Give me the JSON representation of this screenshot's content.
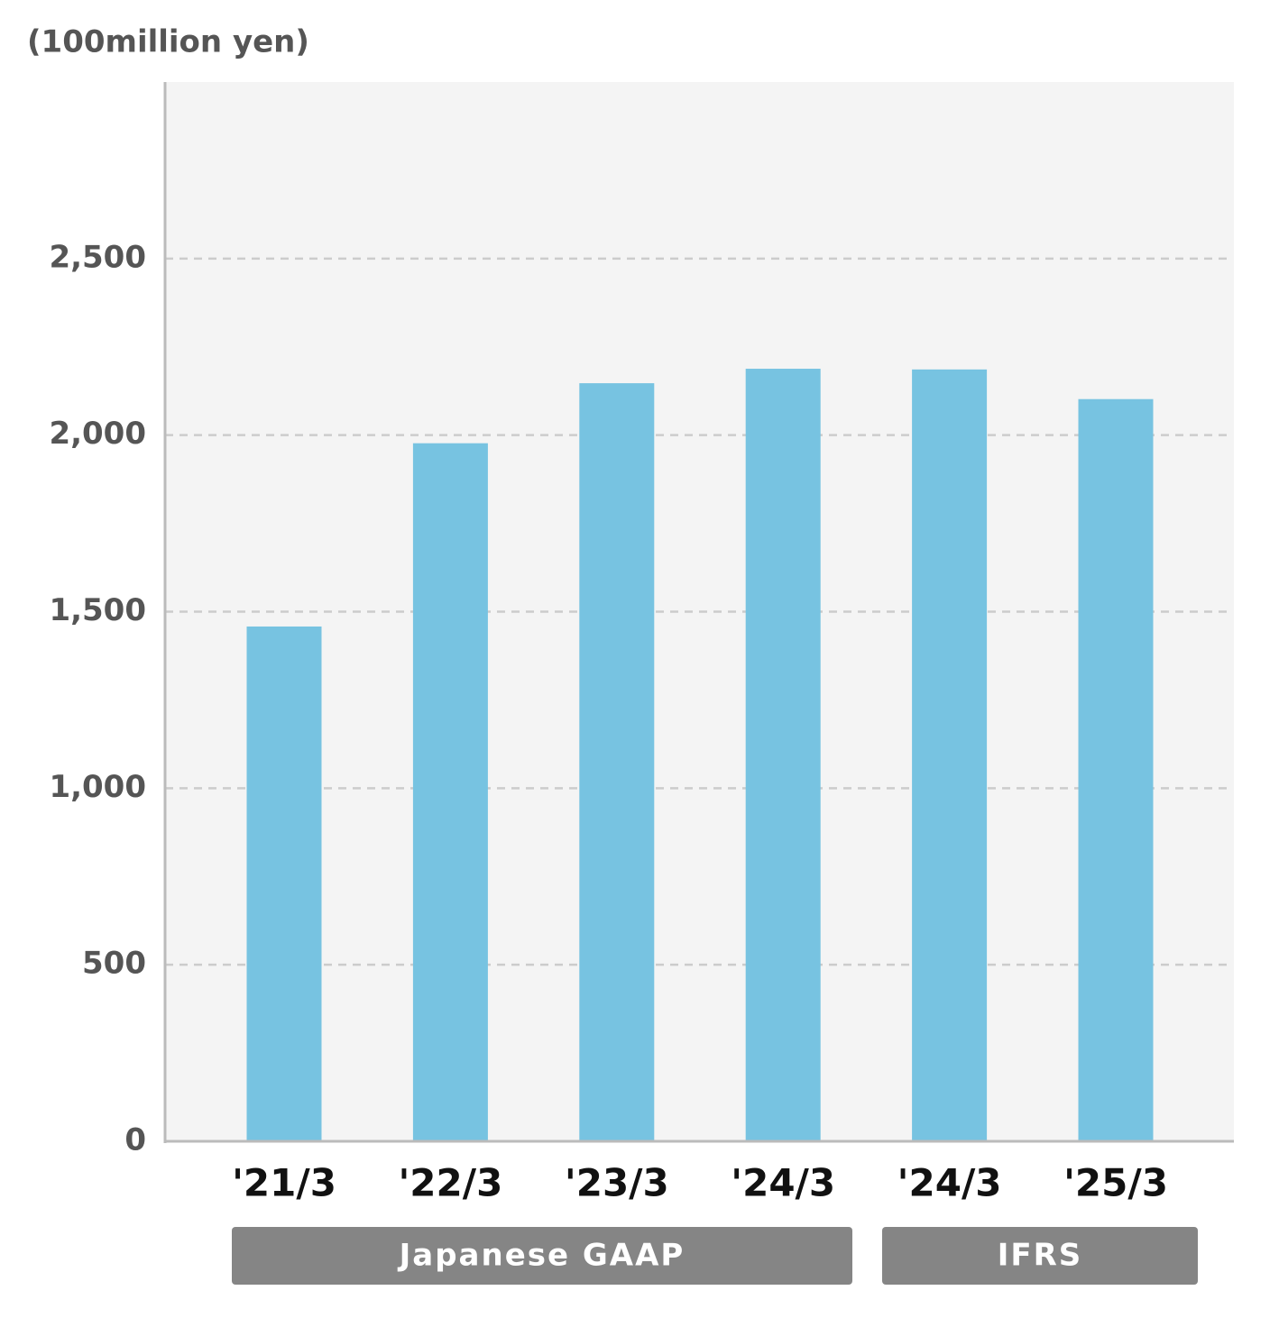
{
  "chart_data": {
    "type": "bar",
    "y_axis_label": "(100million yen)",
    "categories": [
      "'21/3",
      "'22/3",
      "'23/3",
      "'24/3",
      "'24/3",
      "'25/3"
    ],
    "values": [
      1458,
      1977,
      2147,
      2188,
      2186,
      2102
    ],
    "color": "#77c3e1",
    "ylim": [
      0,
      3000
    ],
    "yticks": [
      0,
      500,
      {
        "value": 1000,
        "label": "1,000"
      },
      {
        "value": 1500,
        "label": "1,500"
      },
      {
        "value": 2000,
        "label": "2,000"
      },
      {
        "value": 2500,
        "label": "2,500"
      }
    ],
    "grid": true,
    "group_labels": [
      "Japanese GAAP",
      "IFRS"
    ]
  }
}
